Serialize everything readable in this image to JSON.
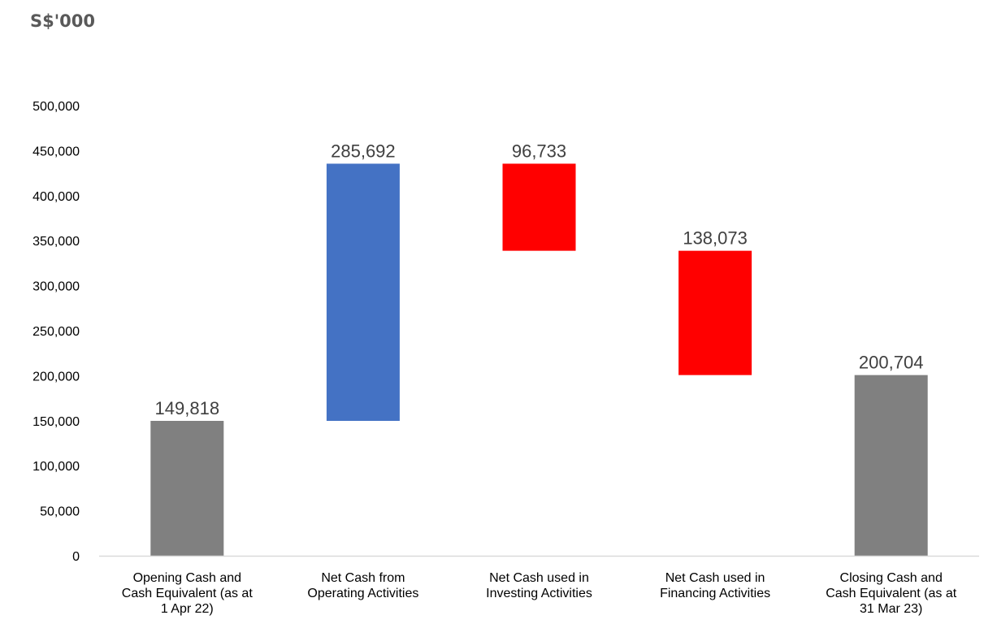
{
  "unit_label": "S$'000",
  "chart_data": {
    "type": "bar",
    "subtype": "waterfall",
    "categories": [
      [
        "Opening Cash and",
        "Cash Equivalent (as at",
        "1 Apr 22)"
      ],
      [
        "Net Cash from",
        "Operating Activities"
      ],
      [
        "Net Cash used in",
        "Investing Activities"
      ],
      [
        "Net Cash used in",
        "Financing Activities"
      ],
      [
        "Closing Cash and",
        "Cash Equivalent (as at",
        "31 Mar 23)"
      ]
    ],
    "bars": [
      {
        "start": 0,
        "end": 149818,
        "label": "149,818",
        "kind": "total"
      },
      {
        "start": 149818,
        "end": 435510,
        "label": "285,692",
        "kind": "increase"
      },
      {
        "start": 435510,
        "end": 338777,
        "label": "96,733",
        "kind": "decrease"
      },
      {
        "start": 338777,
        "end": 200704,
        "label": "138,073",
        "kind": "decrease"
      },
      {
        "start": 0,
        "end": 200704,
        "label": "200,704",
        "kind": "total"
      }
    ],
    "ylim": [
      0,
      500000
    ],
    "yticks": [
      0,
      50000,
      100000,
      150000,
      200000,
      250000,
      300000,
      350000,
      400000,
      450000,
      500000
    ],
    "ytick_labels": [
      "0",
      "50,000",
      "100,000",
      "150,000",
      "200,000",
      "250,000",
      "300,000",
      "350,000",
      "400,000",
      "450,000",
      "500,000"
    ],
    "colors": {
      "total": "#808080",
      "increase": "#4472C4",
      "decrease": "#FF0000",
      "axis": "#D9D9D9"
    },
    "grid": false,
    "legend": "none"
  }
}
